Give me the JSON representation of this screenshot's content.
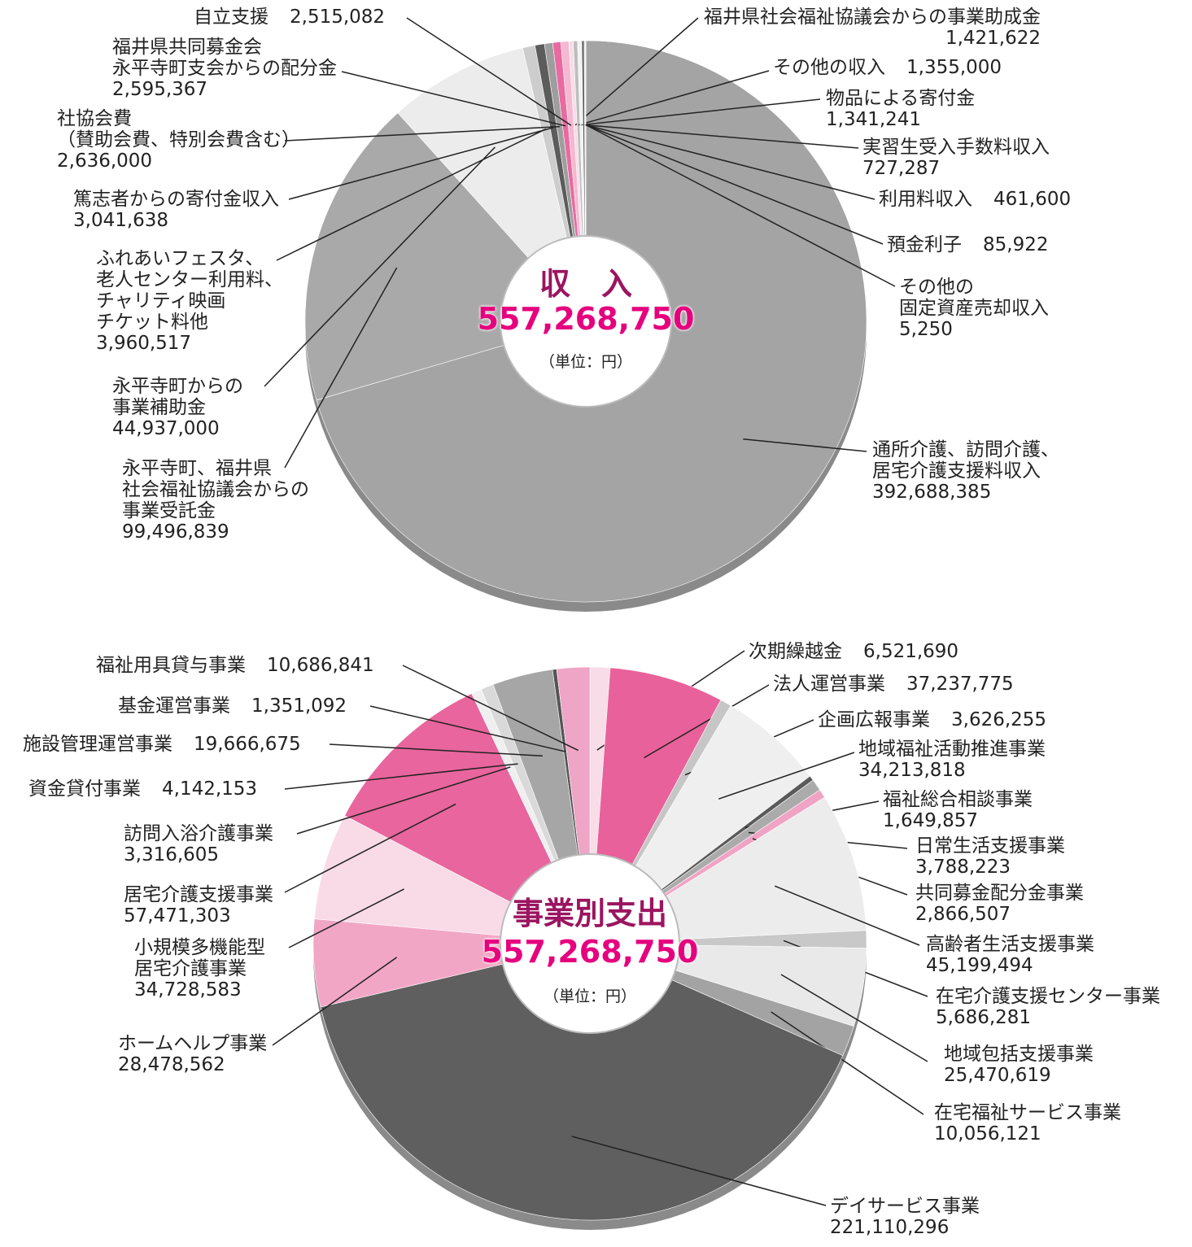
{
  "chart_data": [
    {
      "type": "pie",
      "title": "収　入",
      "total": "557,268,750",
      "unit": "（単位：円）",
      "categories": [
        "通所介護、訪問介護、\n居宅介護支援料収入",
        "永平寺町、福井県\n社会福祉協議会からの\n事業受託金",
        "永平寺町からの\n事業補助金",
        "ふれあいフェスタ、\n老人センター利用料、\nチャリティ映画\nチケット料他",
        "篤志者からの寄付金収入",
        "社協会費\n（賛助会費、特別会費含む）",
        "福井県共同募金会\n永平寺町支会からの配分金",
        "自立支援",
        "福井県社会福祉協議会からの事業助成金",
        "その他の収入",
        "物品による寄付金",
        "実習生受入手数料収入",
        "利用料収入",
        "預金利子",
        "その他の\n固定資産売却収入"
      ],
      "values": [
        392688385,
        99496839,
        44937000,
        3960517,
        3041638,
        2636000,
        2595367,
        2515082,
        1421622,
        1355000,
        1341241,
        727287,
        461600,
        85922,
        5250
      ],
      "value_labels": [
        "392,688,385",
        "99,496,839",
        "44,937,000",
        "3,960,517",
        "3,041,638",
        "2,636,000",
        "2,595,367",
        "2,515,082",
        "1,421,622",
        "1,355,000",
        "1,341,241",
        "727,287",
        "461,600",
        "85,922",
        "5,250"
      ],
      "colors": [
        "#a4a4a4",
        "#a9a9a9",
        "#ececec",
        "#cdcdcd",
        "#5c5c5c",
        "#9e9e9e",
        "#e86aa0",
        "#f4b8d0",
        "#f7dce8",
        "#bdbdbd",
        "#f2f2f2",
        "#545454",
        "#e4e4e4",
        "#f49cc0",
        "#e8619a"
      ]
    },
    {
      "type": "pie",
      "title": "事業別支出",
      "total": "557,268,750",
      "unit": "（単位：円）",
      "categories": [
        "次期繰越金",
        "法人運営事業",
        "企画広報事業",
        "地域福祉活動推進事業",
        "福祉総合相談事業",
        "日常生活支援事業",
        "共同募金配分金事業",
        "高齢者生活支援事業",
        "在宅介護支援センター事業",
        "地域包括支援事業",
        "在宅福祉サービス事業",
        "デイサービス事業",
        "ホームヘルプ事業",
        "小規模多機能型\n居宅介護事業",
        "居宅介護支援事業",
        "訪問入浴介護事業",
        "資金貸付事業",
        "施設管理運営事業",
        "基金運営事業",
        "福祉用具貸与事業"
      ],
      "values": [
        6521690,
        37237775,
        3626255,
        34213818,
        1649857,
        3788223,
        2866507,
        45199494,
        5686281,
        25470619,
        10056121,
        221110296,
        28478562,
        34728583,
        57471303,
        3316605,
        4142153,
        19666675,
        1351092,
        10686841
      ],
      "value_labels": [
        "6,521,690",
        "37,237,775",
        "3,626,255",
        "34,213,818",
        "1,649,857",
        "3,788,223",
        "2,866,507",
        "45,199,494",
        "5,686,281",
        "25,470,619",
        "10,056,121",
        "221,110,296",
        "28,478,562",
        "34,728,583",
        "57,471,303",
        "3,316,605",
        "4,142,153",
        "19,666,675",
        "1,351,092",
        "10,686,841"
      ],
      "colors": [
        "#f8dce8",
        "#e8619a",
        "#c6c6c6",
        "#efefef",
        "#5a5a5a",
        "#ababab",
        "#f0a4c4",
        "#ececec",
        "#c8c8c8",
        "#e9e9e9",
        "#a3a3a3",
        "#5f5f5f",
        "#f2a6c5",
        "#f9dbe7",
        "#e8659d",
        "#efefef",
        "#d9d9d9",
        "#a6a6a6",
        "#555555",
        "#efa5c5"
      ]
    }
  ]
}
